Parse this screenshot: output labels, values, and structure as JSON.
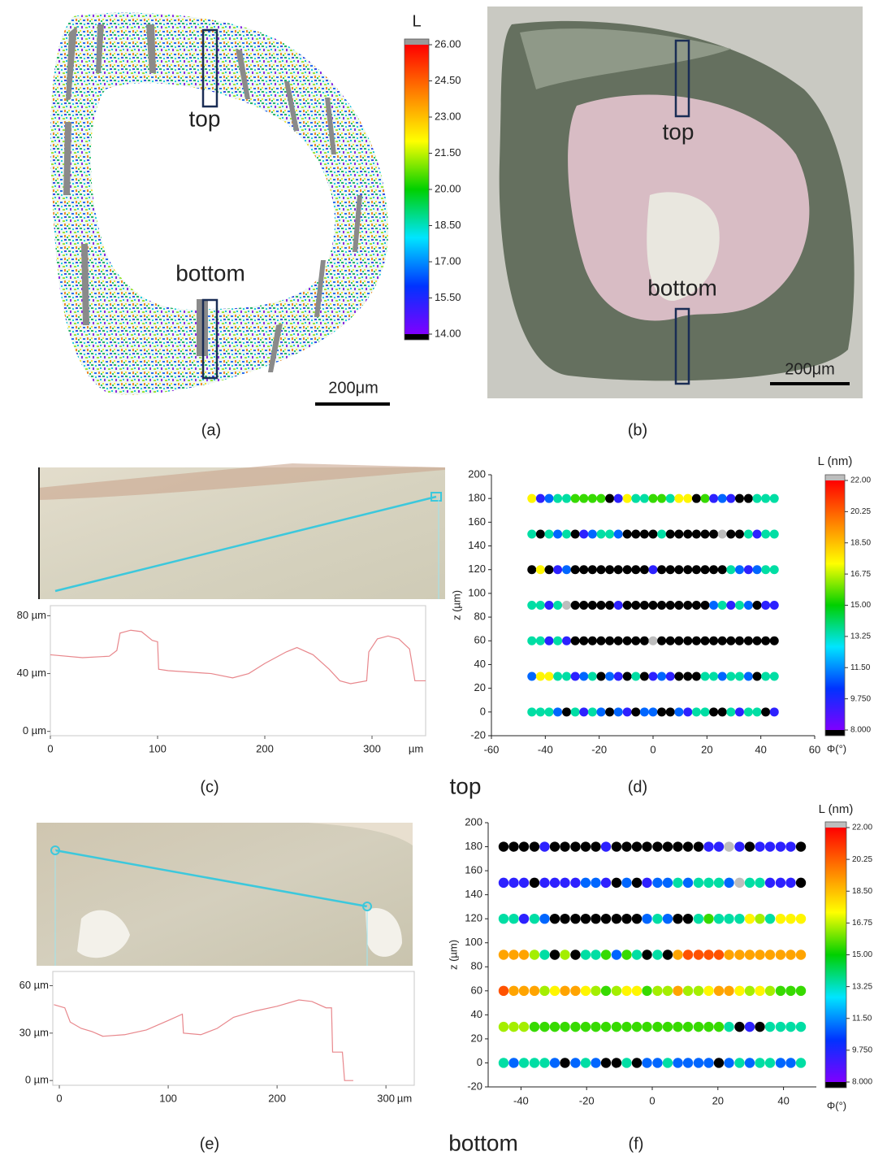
{
  "panel_a": {
    "label": "(a)",
    "colorbar_title": "L",
    "clim": [
      14,
      26
    ],
    "colormap": [
      "#7f00ff",
      "#0033ff",
      "#00e5ff",
      "#00d000",
      "#ffff00",
      "#ff8000",
      "#ff0000"
    ],
    "under_color": "#000000",
    "over_color": "#9a9a9a",
    "colorbar_ticks": [
      {
        "value": 26,
        "label": "26.00"
      },
      {
        "value": 24.5,
        "label": "24.50"
      },
      {
        "value": 23,
        "label": "23.00"
      },
      {
        "value": 21.5,
        "label": "21.50"
      },
      {
        "value": 20,
        "label": "20.00"
      },
      {
        "value": 18.5,
        "label": "18.50"
      },
      {
        "value": 17,
        "label": "17.00"
      },
      {
        "value": 15.5,
        "label": "15.50"
      },
      {
        "value": 14,
        "label": "14.00"
      }
    ],
    "top": "top",
    "bottom": "bottom",
    "scale_bar": "200μm"
  },
  "panel_b": {
    "label": "(b)",
    "top": "top",
    "bottom": "bottom",
    "scale_bar": "200μm"
  },
  "panel_c": {
    "label": "(c)",
    "type": "line",
    "color": "#e8878c",
    "x_unit": "µm",
    "x": [
      0,
      30,
      55,
      62,
      65,
      75,
      85,
      95,
      100,
      101,
      110,
      130,
      150,
      170,
      185,
      200,
      220,
      230,
      245,
      260,
      270,
      280,
      295,
      297,
      305,
      315,
      325,
      335,
      340,
      350
    ],
    "values": [
      53,
      51,
      52,
      56,
      68,
      70,
      69,
      63,
      62,
      43,
      42,
      41,
      40,
      37,
      40,
      47,
      55,
      58,
      53,
      43,
      35,
      33,
      35,
      55,
      64,
      66,
      64,
      57,
      35,
      35
    ],
    "xlim": [
      0,
      350
    ],
    "ylim": [
      -3,
      87
    ],
    "xticks": [
      0,
      100,
      200,
      300
    ],
    "yticks": [
      {
        "value": 80,
        "label": "80 µm"
      },
      {
        "value": 40,
        "label": "40 µm"
      },
      {
        "value": 0,
        "label": "0 µm"
      }
    ]
  },
  "panel_d": {
    "label": "(d)",
    "type": "scatter",
    "caption": "top",
    "xlabel": "Φ(°)",
    "ylabel": "z (µm)",
    "colorbar_title": "L (nm)",
    "xlim": [
      -60,
      60
    ],
    "xticks": [
      -60,
      -40,
      -20,
      0,
      20,
      40,
      60
    ],
    "ylim": [
      -20,
      200
    ],
    "yticks": [
      -20,
      0,
      20,
      40,
      60,
      80,
      100,
      120,
      140,
      160,
      180,
      200
    ],
    "clim": [
      8,
      22
    ],
    "colormap": [
      "#7f00ff",
      "#0033ff",
      "#00e5ff",
      "#00d000",
      "#ffff00",
      "#ff8000",
      "#ff0000"
    ],
    "under_color": "#000000",
    "over_color": "#bdbdbd",
    "colorbar_ticks": [
      {
        "value": 22,
        "label": "22.00"
      },
      {
        "value": 20.25,
        "label": "20.25"
      },
      {
        "value": 18.5,
        "label": "18.50"
      },
      {
        "value": 16.75,
        "label": "16.75"
      },
      {
        "value": 15,
        "label": "15.00"
      },
      {
        "value": 13.25,
        "label": "13.25"
      },
      {
        "value": 11.5,
        "label": "11.50"
      },
      {
        "value": 9.75,
        "label": "9.750"
      },
      {
        "value": 8,
        "label": "8.000"
      }
    ],
    "x": [
      -45,
      -41.8,
      -38.6,
      -35.4,
      -32.1,
      -28.9,
      -25.7,
      -22.5,
      -19.3,
      -16.1,
      -12.9,
      -9.6,
      -6.4,
      -3.2,
      0,
      3.2,
      6.4,
      9.6,
      12.9,
      16.1,
      19.3,
      22.5,
      25.7,
      28.9,
      32.1,
      35.4,
      38.6,
      41.8,
      45
    ],
    "rows": [
      {
        "z": 180,
        "values": [
          17.5,
          9.5,
          11,
          13.5,
          13.5,
          15.5,
          15.5,
          15.5,
          15.5,
          7.5,
          9.5,
          17.5,
          13.5,
          13.5,
          15.5,
          15.5,
          13.5,
          17.5,
          17.5,
          7.5,
          15.5,
          9.5,
          11,
          9.5,
          7.5,
          7.5,
          13.5,
          13.5,
          13.5
        ]
      },
      {
        "z": 150,
        "values": [
          13.5,
          7.5,
          13.5,
          11,
          13.5,
          7.5,
          9.5,
          11,
          13.5,
          13.5,
          11,
          7.5,
          7.5,
          7.5,
          7.5,
          13.5,
          7.5,
          7.5,
          7.5,
          7.5,
          7.5,
          7.5,
          22.5,
          7.5,
          7.5,
          13.5,
          9.5,
          13.5,
          13.5
        ]
      },
      {
        "z": 120,
        "values": [
          7.5,
          17.5,
          7.5,
          9.5,
          11,
          7.5,
          7.5,
          7.5,
          7.5,
          7.5,
          7.5,
          7.5,
          7.5,
          7.5,
          9.5,
          7.5,
          7.5,
          7.5,
          7.5,
          7.5,
          7.5,
          7.5,
          7.5,
          13.5,
          11,
          9.5,
          11,
          13.5,
          13.5
        ]
      },
      {
        "z": 90,
        "values": [
          13.5,
          13.5,
          9.5,
          13.5,
          22.5,
          7.5,
          7.5,
          7.5,
          7.5,
          7.5,
          9.5,
          7.5,
          7.5,
          7.5,
          7.5,
          7.5,
          7.5,
          7.5,
          7.5,
          7.5,
          7.5,
          11,
          13.5,
          9.5,
          13.5,
          11,
          7.5,
          9.5,
          9.5
        ]
      },
      {
        "z": 60,
        "values": [
          13.5,
          13.5,
          9.5,
          13.5,
          9.5,
          7.5,
          7.5,
          7.5,
          7.5,
          7.5,
          7.5,
          7.5,
          7.5,
          7.5,
          22.5,
          7.5,
          7.5,
          7.5,
          7.5,
          7.5,
          7.5,
          7.5,
          7.5,
          7.5,
          7.5,
          7.5,
          7.5,
          7.5,
          7.5
        ]
      },
      {
        "z": 30,
        "values": [
          11,
          17.5,
          17.5,
          13.5,
          13.5,
          9.5,
          11,
          13.5,
          7.5,
          11,
          9.5,
          7.5,
          13.5,
          7.5,
          9.5,
          11,
          9.5,
          7.5,
          7.5,
          7.5,
          13.5,
          13.5,
          11,
          13.5,
          13.5,
          11,
          7.5,
          13.5,
          13.5
        ]
      },
      {
        "z": 0,
        "values": [
          13.5,
          13.5,
          13.5,
          11,
          7.5,
          13.5,
          9.5,
          13.5,
          11,
          7.5,
          11,
          9.5,
          7.5,
          11,
          11,
          7.5,
          7.5,
          11,
          9.5,
          13.5,
          13.5,
          7.5,
          7.5,
          13.5,
          9.5,
          13.5,
          13.5,
          7.5,
          9.5
        ]
      }
    ]
  },
  "panel_e": {
    "label": "(e)",
    "type": "line",
    "color": "#e8878c",
    "x_unit": "µm",
    "x": [
      -5,
      0,
      5,
      10,
      20,
      30,
      40,
      60,
      80,
      100,
      113,
      114,
      130,
      145,
      160,
      180,
      200,
      220,
      232,
      245,
      250,
      251,
      260,
      262,
      270
    ],
    "values": [
      48,
      47,
      46,
      37,
      33,
      31,
      28,
      29,
      32,
      38,
      42,
      30,
      29,
      33,
      40,
      44,
      47,
      51,
      50,
      46,
      46,
      18,
      18,
      0,
      0
    ],
    "xlim": [
      -6,
      326
    ],
    "ylim": [
      -3,
      69
    ],
    "xticks": [
      0,
      100,
      200,
      300
    ],
    "yticks": [
      {
        "value": 60,
        "label": "60 µm"
      },
      {
        "value": 30,
        "label": "30 µm"
      },
      {
        "value": 0,
        "label": "0 µm"
      }
    ]
  },
  "panel_f": {
    "label": "(f)",
    "type": "scatter",
    "caption": "bottom",
    "xlabel": "Φ(°)",
    "ylabel": "z (µm)",
    "colorbar_title": "L (nm)",
    "xlim": [
      -50,
      50
    ],
    "xticks": [
      -40,
      -20,
      0,
      20,
      40
    ],
    "ylim": [
      -20,
      200
    ],
    "yticks": [
      -20,
      0,
      20,
      40,
      60,
      80,
      100,
      120,
      140,
      160,
      180,
      200
    ],
    "clim": [
      8,
      22
    ],
    "colormap": [
      "#7f00ff",
      "#0033ff",
      "#00e5ff",
      "#00d000",
      "#ffff00",
      "#ff8000",
      "#ff0000"
    ],
    "under_color": "#000000",
    "over_color": "#bdbdbd",
    "colorbar_ticks": [
      {
        "value": 22,
        "label": "22.00"
      },
      {
        "value": 20.25,
        "label": "20.25"
      },
      {
        "value": 18.5,
        "label": "18.50"
      },
      {
        "value": 16.75,
        "label": "16.75"
      },
      {
        "value": 15,
        "label": "15.00"
      },
      {
        "value": 13.25,
        "label": "13.25"
      },
      {
        "value": 11.5,
        "label": "11.50"
      },
      {
        "value": 9.75,
        "label": "9.750"
      },
      {
        "value": 8,
        "label": "8.000"
      }
    ],
    "x": [
      -45.3,
      -42.2,
      -39.1,
      -35.9,
      -32.8,
      -29.7,
      -26.6,
      -23.4,
      -20.3,
      -17.2,
      -14.1,
      -10.9,
      -7.8,
      -4.7,
      -1.6,
      1.6,
      4.7,
      7.8,
      10.9,
      14.1,
      17.2,
      20.3,
      23.4,
      26.6,
      29.7,
      32.8,
      35.9,
      39.1,
      42.2,
      45.3
    ],
    "rows": [
      {
        "z": 180,
        "values": [
          7.5,
          7.5,
          7.5,
          7.5,
          9.5,
          7.5,
          7.5,
          7.5,
          7.5,
          7.5,
          9.5,
          7.5,
          7.5,
          7.5,
          7.5,
          7.5,
          7.5,
          7.5,
          7.5,
          7.5,
          9.5,
          9.5,
          22.5,
          9.5,
          7.5,
          9.5,
          9.5,
          9.5,
          9.5,
          7.5
        ]
      },
      {
        "z": 150,
        "values": [
          9.5,
          9.5,
          9.5,
          7.5,
          9.5,
          9.5,
          9.5,
          9.5,
          11,
          11,
          9.5,
          7.5,
          11,
          7.5,
          9.5,
          11,
          11,
          13.5,
          11,
          13.5,
          13.5,
          13.5,
          11,
          22.5,
          13.5,
          13.5,
          9.5,
          9.5,
          9.5,
          7.5
        ]
      },
      {
        "z": 120,
        "values": [
          13.5,
          13.5,
          9.5,
          13.5,
          11,
          7.5,
          7.5,
          7.5,
          7.5,
          7.5,
          7.5,
          7.5,
          7.5,
          7.5,
          11,
          13.5,
          11,
          7.5,
          7.5,
          13.5,
          15.5,
          13.5,
          13.5,
          13.5,
          17.5,
          16.5,
          13.5,
          17.5,
          17.5,
          17.5
        ]
      },
      {
        "z": 90,
        "values": [
          19,
          19,
          19,
          16.5,
          13.5,
          7.5,
          16.5,
          7.5,
          13.5,
          13.5,
          15.5,
          11,
          15.5,
          13.5,
          7.5,
          13.5,
          7.5,
          19,
          20.5,
          20.5,
          20.5,
          20.5,
          19,
          19,
          19,
          19,
          19,
          19,
          19,
          19
        ]
      },
      {
        "z": 60,
        "values": [
          20.5,
          19,
          19,
          19,
          16.5,
          17.5,
          19,
          19,
          17.5,
          16.5,
          15.5,
          16.5,
          17.5,
          17.5,
          15.5,
          16.5,
          16.5,
          19,
          16.5,
          16.5,
          17.5,
          19,
          19,
          17.5,
          16.5,
          17.5,
          16.5,
          15.5,
          15.5,
          15.5
        ]
      },
      {
        "z": 30,
        "values": [
          16.5,
          16.5,
          16.5,
          15.5,
          15.5,
          15.5,
          15.5,
          15.5,
          15.5,
          15.5,
          15.5,
          15.5,
          15.5,
          15.5,
          15.5,
          15.5,
          15.5,
          15.5,
          15.5,
          15.5,
          15.5,
          15.5,
          13.5,
          7.5,
          9.5,
          7.5,
          13.5,
          13.5,
          13.5,
          13.5
        ]
      },
      {
        "z": 0,
        "values": [
          13.5,
          11,
          13.5,
          13.5,
          13.5,
          11,
          7.5,
          11,
          13.5,
          11,
          7.5,
          7.5,
          13.5,
          7.5,
          11,
          11,
          13.5,
          11,
          11,
          11,
          11,
          7.5,
          11,
          13.5,
          11,
          13.5,
          13.5,
          11,
          11,
          13.5
        ]
      }
    ]
  }
}
